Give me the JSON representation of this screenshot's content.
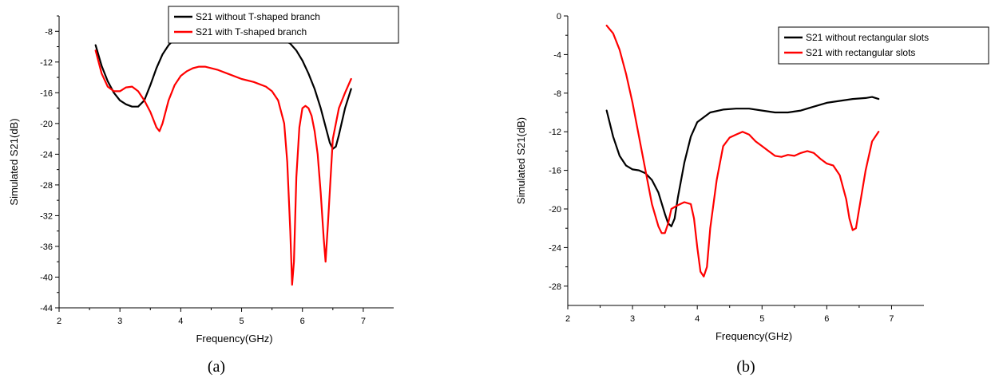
{
  "chart_data": [
    {
      "type": "line",
      "caption": "(a)",
      "xlabel": "Frequency(GHz)",
      "ylabel": "Simulated S21(dB)",
      "xlim": [
        2,
        7.5
      ],
      "ylim": [
        -44,
        -6
      ],
      "xticks": [
        2,
        3,
        4,
        5,
        6,
        7
      ],
      "yticks": [
        -44,
        -40,
        -36,
        -32,
        -28,
        -24,
        -20,
        -16,
        -12,
        -8
      ],
      "legend_position": "top-right",
      "series": [
        {
          "name": "S21 without T-shaped branch",
          "color": "#000000",
          "x": [
            2.6,
            2.7,
            2.8,
            2.9,
            3.0,
            3.1,
            3.2,
            3.3,
            3.4,
            3.5,
            3.6,
            3.7,
            3.8,
            3.9,
            4.0,
            4.1,
            4.2,
            4.4,
            4.6,
            4.8,
            5.0,
            5.2,
            5.4,
            5.6,
            5.8,
            5.9,
            6.0,
            6.1,
            6.2,
            6.3,
            6.4,
            6.45,
            6.5,
            6.55,
            6.6,
            6.7,
            6.8
          ],
          "y": [
            -9.8,
            -12.5,
            -14.5,
            -16.0,
            -17.0,
            -17.5,
            -17.8,
            -17.8,
            -17.0,
            -15.0,
            -12.8,
            -11.0,
            -9.8,
            -9.0,
            -8.6,
            -8.4,
            -8.3,
            -8.2,
            -8.2,
            -8.2,
            -8.2,
            -8.2,
            -8.3,
            -8.7,
            -9.6,
            -10.5,
            -11.8,
            -13.5,
            -15.5,
            -18.0,
            -21.0,
            -22.5,
            -23.3,
            -23.0,
            -21.5,
            -18.0,
            -15.5
          ]
        },
        {
          "name": "S21 with T-shaped branch",
          "color": "#ff0000",
          "x": [
            2.6,
            2.7,
            2.8,
            2.9,
            3.0,
            3.1,
            3.2,
            3.3,
            3.4,
            3.5,
            3.6,
            3.65,
            3.7,
            3.8,
            3.9,
            4.0,
            4.1,
            4.2,
            4.3,
            4.4,
            4.6,
            4.8,
            5.0,
            5.2,
            5.4,
            5.5,
            5.6,
            5.7,
            5.75,
            5.8,
            5.83,
            5.86,
            5.9,
            5.95,
            6.0,
            6.05,
            6.1,
            6.15,
            6.2,
            6.25,
            6.3,
            6.35,
            6.38,
            6.42,
            6.5,
            6.6,
            6.7,
            6.8
          ],
          "y": [
            -10.5,
            -13.5,
            -15.2,
            -15.8,
            -15.8,
            -15.3,
            -15.2,
            -15.8,
            -17.0,
            -18.5,
            -20.5,
            -21.0,
            -20.0,
            -17.0,
            -15.0,
            -13.8,
            -13.2,
            -12.8,
            -12.6,
            -12.6,
            -13.0,
            -13.6,
            -14.2,
            -14.6,
            -15.2,
            -15.8,
            -17.0,
            -20.0,
            -25.0,
            -34.0,
            -41.0,
            -38.0,
            -27.0,
            -20.5,
            -18.0,
            -17.7,
            -18.0,
            -19.0,
            -21.0,
            -24.0,
            -29.0,
            -35.0,
            -38.0,
            -33.0,
            -22.0,
            -18.0,
            -16.0,
            -14.2
          ]
        }
      ]
    },
    {
      "type": "line",
      "caption": "(b)",
      "xlabel": "Frequency(GHz)",
      "ylabel": "Simulated S21(dB)",
      "xlim": [
        2,
        7.5
      ],
      "ylim": [
        -30,
        0
      ],
      "xticks": [
        2,
        3,
        4,
        5,
        6,
        7
      ],
      "yticks": [
        -28,
        -24,
        -20,
        -16,
        -12,
        -8,
        -4,
        0
      ],
      "legend_position": "top-right",
      "series": [
        {
          "name": "S21 without rectangular slots",
          "color": "#000000",
          "x": [
            2.6,
            2.7,
            2.8,
            2.9,
            3.0,
            3.1,
            3.2,
            3.3,
            3.4,
            3.5,
            3.55,
            3.6,
            3.65,
            3.7,
            3.8,
            3.9,
            4.0,
            4.2,
            4.4,
            4.6,
            4.8,
            5.0,
            5.2,
            5.4,
            5.6,
            5.8,
            6.0,
            6.2,
            6.4,
            6.6,
            6.7,
            6.8
          ],
          "y": [
            -9.8,
            -12.5,
            -14.5,
            -15.5,
            -15.9,
            -16.0,
            -16.3,
            -17.0,
            -18.3,
            -20.5,
            -21.5,
            -21.8,
            -21.0,
            -18.8,
            -15.2,
            -12.5,
            -11.0,
            -10.0,
            -9.7,
            -9.6,
            -9.6,
            -9.8,
            -10.0,
            -10.0,
            -9.8,
            -9.4,
            -9.0,
            -8.8,
            -8.6,
            -8.5,
            -8.4,
            -8.6
          ]
        },
        {
          "name": "S21 with rectangular slots",
          "color": "#ff0000",
          "x": [
            2.6,
            2.7,
            2.8,
            2.9,
            3.0,
            3.1,
            3.2,
            3.3,
            3.4,
            3.45,
            3.5,
            3.55,
            3.6,
            3.7,
            3.8,
            3.9,
            3.95,
            4.0,
            4.05,
            4.1,
            4.15,
            4.2,
            4.3,
            4.4,
            4.5,
            4.6,
            4.7,
            4.8,
            4.9,
            5.0,
            5.1,
            5.2,
            5.3,
            5.4,
            5.5,
            5.6,
            5.7,
            5.8,
            5.9,
            6.0,
            6.1,
            6.2,
            6.3,
            6.35,
            6.4,
            6.45,
            6.5,
            6.6,
            6.7,
            6.8
          ],
          "y": [
            -1.0,
            -1.8,
            -3.5,
            -6.0,
            -9.0,
            -12.5,
            -16.0,
            -19.5,
            -21.8,
            -22.5,
            -22.5,
            -21.5,
            -20.0,
            -19.6,
            -19.3,
            -19.5,
            -21.0,
            -24.0,
            -26.5,
            -27.0,
            -26.0,
            -22.0,
            -17.0,
            -13.5,
            -12.6,
            -12.3,
            -12.0,
            -12.3,
            -13.0,
            -13.5,
            -14.0,
            -14.5,
            -14.6,
            -14.4,
            -14.5,
            -14.2,
            -14.0,
            -14.2,
            -14.8,
            -15.3,
            -15.5,
            -16.5,
            -19.0,
            -21.0,
            -22.2,
            -22.0,
            -20.0,
            -16.0,
            -13.0,
            -12.0
          ]
        }
      ]
    }
  ]
}
